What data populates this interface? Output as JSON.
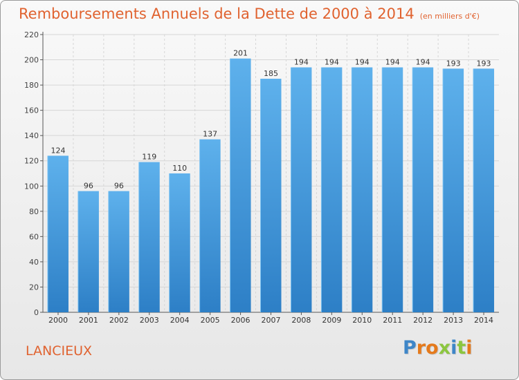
{
  "title": "Remboursements Annuels de la Dette de 2000 à 2014",
  "unit": "(en milliers d'€)",
  "commune": "LANCIEUX",
  "logo": "Proxiti",
  "colors": {
    "title": "#e0622f",
    "bar_light": "#5eb1ec",
    "bar_dark": "#2d7fc6",
    "logo_letters": [
      "#3e86c8",
      "#e57a1c",
      "#e57a1c",
      "#8cc63f",
      "#3e86c8",
      "#8cc63f",
      "#e57a1c"
    ]
  },
  "chart_data": {
    "type": "bar",
    "categories": [
      "2000",
      "2001",
      "2002",
      "2003",
      "2004",
      "2005",
      "2006",
      "2007",
      "2008",
      "2009",
      "2010",
      "2011",
      "2012",
      "2013",
      "2014"
    ],
    "values": [
      124,
      96,
      96,
      119,
      110,
      137,
      201,
      185,
      194,
      194,
      194,
      194,
      194,
      193,
      193
    ],
    "yticks": [
      0,
      20,
      40,
      60,
      80,
      100,
      120,
      140,
      160,
      180,
      200,
      220
    ],
    "ylim": [
      0,
      220
    ],
    "grid": true,
    "legend": "none"
  }
}
